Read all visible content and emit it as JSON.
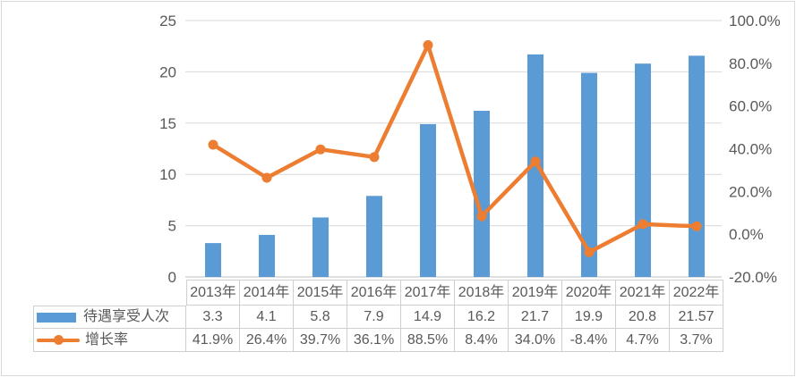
{
  "chart_data": {
    "type": "combo",
    "categories": [
      "2013年",
      "2014年",
      "2015年",
      "2016年",
      "2017年",
      "2018年",
      "2019年",
      "2020年",
      "2021年",
      "2022年"
    ],
    "series": [
      {
        "name": "待遇享受人次",
        "chart": "bar",
        "axis": "left",
        "color": "#5B9BD5",
        "values": [
          3.3,
          4.1,
          5.8,
          7.9,
          14.9,
          16.2,
          21.7,
          19.9,
          20.8,
          21.57
        ],
        "display": [
          "3.3",
          "4.1",
          "5.8",
          "7.9",
          "14.9",
          "16.2",
          "21.7",
          "19.9",
          "20.8",
          "21.57"
        ]
      },
      {
        "name": "增长率",
        "chart": "line",
        "axis": "right",
        "color": "#ED7D31",
        "values": [
          41.9,
          26.4,
          39.7,
          36.1,
          88.5,
          8.4,
          34.0,
          -8.4,
          4.7,
          3.7
        ],
        "display": [
          "41.9%",
          "26.4%",
          "39.7%",
          "36.1%",
          "88.5%",
          "8.4%",
          "34.0%",
          "-8.4%",
          "4.7%",
          "3.7%"
        ]
      }
    ],
    "left_axis": {
      "min": 0,
      "max": 25,
      "labels": [
        "0",
        "5",
        "10",
        "15",
        "20",
        "25"
      ]
    },
    "right_axis": {
      "min": -20,
      "max": 100,
      "labels": [
        "-20.0%",
        "0.0%",
        "20.0%",
        "40.0%",
        "60.0%",
        "80.0%",
        "100.0%"
      ]
    },
    "grid": true,
    "legend_position": "data-table-left"
  },
  "colors": {
    "bar": "#5B9BD5",
    "line": "#ED7D31",
    "grid": "#D9D9D9",
    "axis_line": "#BFBFBF",
    "text": "#595959",
    "table_border": "#CFCFCF",
    "frame_border": "#D9D9D9",
    "background": "#FFFFFF"
  }
}
